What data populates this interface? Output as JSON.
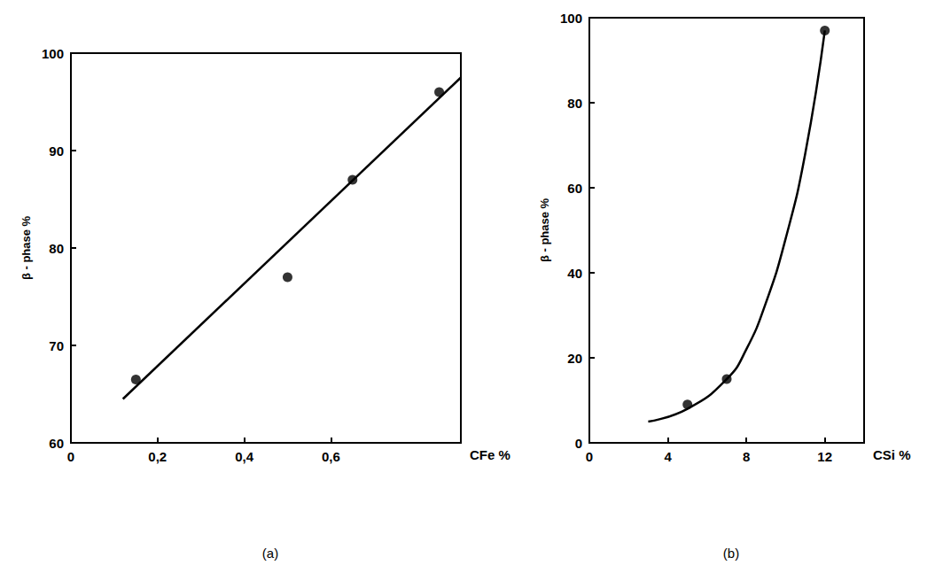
{
  "chart_data": [
    {
      "type": "scatter",
      "title": "(a)",
      "x_label": "CFe %",
      "y_label": "β - phase %",
      "xlim": [
        0,
        0.9
      ],
      "xticks": [
        0,
        {
          "value": 0.2,
          "label": "0,2"
        },
        {
          "value": 0.4,
          "label": "0,4"
        },
        {
          "value": 0.6,
          "label": "0,6"
        }
      ],
      "ylim": [
        60,
        100
      ],
      "yticks": [
        60,
        70,
        80,
        90,
        100
      ],
      "grid": false,
      "series": [
        {
          "type": "scatter",
          "marker": "circle",
          "color": "#000000",
          "x": [
            0.15,
            0.5,
            0.65,
            0.85
          ],
          "values": [
            66.5,
            77,
            87,
            96
          ]
        },
        {
          "type": "line",
          "line_style": "solid",
          "color": "#000000",
          "x": [
            0.12,
            0.9
          ],
          "values": [
            64.5,
            97.5
          ]
        }
      ]
    },
    {
      "type": "scatter",
      "title": "(b)",
      "x_label": "CSi %",
      "y_label": "β - phase %",
      "xlim": [
        0,
        14
      ],
      "xticks": [
        0,
        4,
        8,
        12
      ],
      "ylim": [
        0,
        100
      ],
      "yticks": [
        0,
        20,
        40,
        60,
        80,
        100
      ],
      "grid": false,
      "series": [
        {
          "type": "scatter",
          "marker": "circle",
          "color": "#000000",
          "x": [
            5,
            7,
            12
          ],
          "values": [
            9,
            15,
            97
          ]
        },
        {
          "type": "line",
          "line_style": "solid",
          "color": "#000000",
          "x": [
            3,
            5,
            7,
            8,
            9,
            10,
            11,
            12
          ],
          "values": [
            5,
            8,
            15,
            22,
            33,
            48,
            68,
            97
          ]
        }
      ]
    }
  ]
}
